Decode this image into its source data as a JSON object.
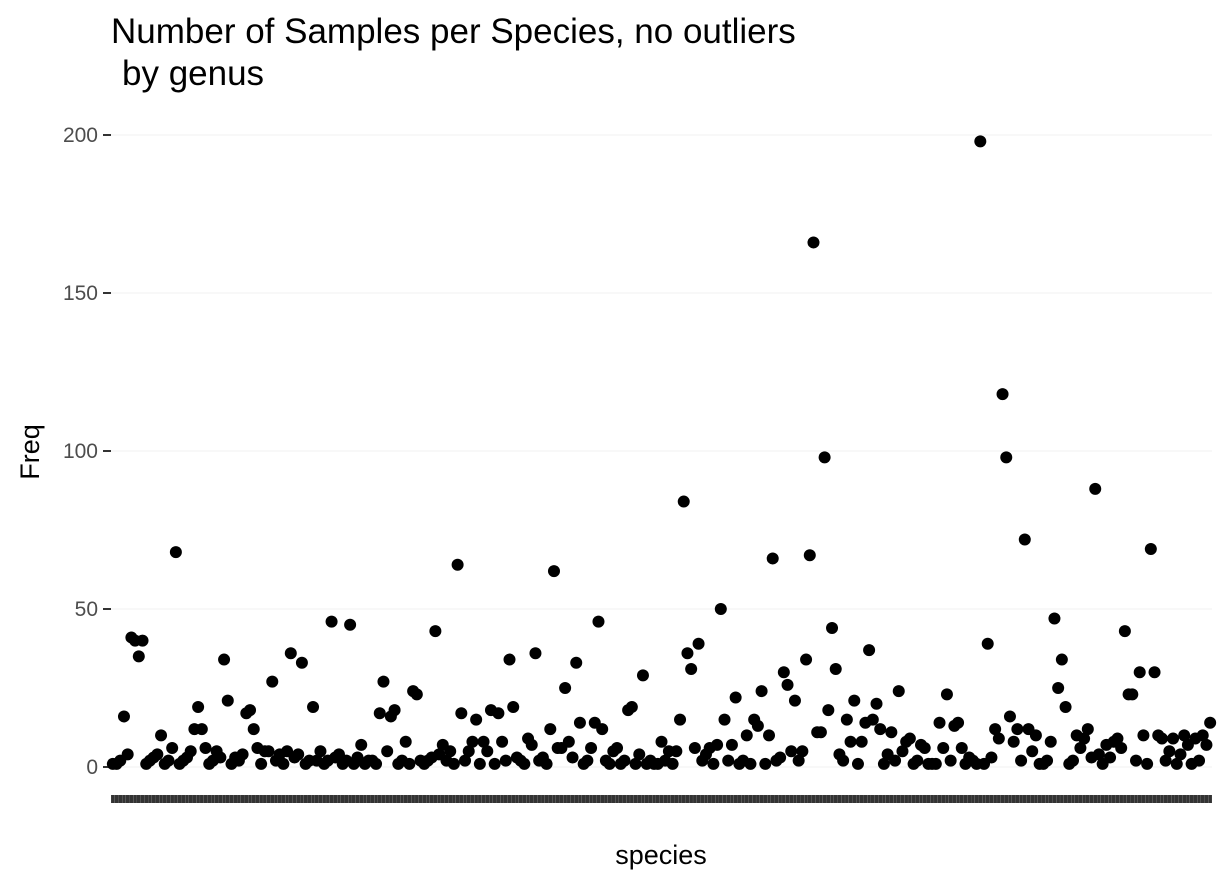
{
  "chart_data": {
    "type": "scatter",
    "title": "Number of Samples per Species, no outliers",
    "subtitle": "by genus",
    "xlabel": "species",
    "ylabel": "Freq",
    "ylim": [
      0,
      205
    ],
    "yticks": [
      0,
      50,
      100,
      150,
      200
    ],
    "grid": true,
    "legend": "none",
    "point_color": "#000000",
    "series": [
      {
        "values": [
          1,
          1,
          2,
          16,
          4,
          41,
          40,
          35,
          40,
          1,
          2,
          3,
          4,
          10,
          1,
          2,
          6,
          68,
          1,
          2,
          3,
          5,
          12,
          19,
          12,
          6,
          1,
          2,
          5,
          3,
          34,
          21,
          1,
          3,
          2,
          4,
          17,
          18,
          12,
          6,
          1,
          5,
          5,
          27,
          2,
          4,
          1,
          5,
          36,
          3,
          4,
          33,
          1,
          2,
          19,
          2,
          5,
          1,
          2,
          46,
          3,
          4,
          1,
          2,
          45,
          1,
          3,
          7,
          1,
          2,
          2,
          1,
          17,
          27,
          5,
          16,
          18,
          1,
          2,
          8,
          1,
          24,
          23,
          2,
          1,
          2,
          3,
          43,
          4,
          7,
          2,
          5,
          1,
          64,
          17,
          2,
          5,
          8,
          15,
          1,
          8,
          5,
          18,
          1,
          17,
          8,
          2,
          34,
          19,
          3,
          2,
          1,
          9,
          7,
          36,
          2,
          3,
          1,
          12,
          62,
          6,
          6,
          25,
          8,
          3,
          33,
          14,
          1,
          2,
          6,
          14,
          46,
          12,
          2,
          1,
          5,
          6,
          1,
          2,
          18,
          19,
          1,
          4,
          29,
          1,
          2,
          1,
          1,
          8,
          2,
          5,
          1,
          5,
          15,
          84,
          36,
          31,
          6,
          39,
          2,
          4,
          6,
          1,
          7,
          50,
          15,
          2,
          7,
          22,
          1,
          2,
          10,
          1,
          15,
          13,
          24,
          1,
          10,
          66,
          2,
          3,
          30,
          26,
          5,
          21,
          2,
          5,
          34,
          67,
          166,
          11,
          11,
          98,
          18,
          44,
          31,
          4,
          2,
          15,
          8,
          21,
          1,
          8,
          14,
          37,
          15,
          20,
          12,
          1,
          4,
          11,
          2,
          24,
          5,
          8,
          9,
          1,
          2,
          7,
          6,
          1,
          1,
          1,
          14,
          6,
          23,
          2,
          13,
          14,
          6,
          1,
          3,
          2,
          1,
          198,
          1,
          39,
          3,
          12,
          9,
          118,
          98,
          16,
          8,
          12,
          2,
          72,
          12,
          5,
          10,
          1,
          1,
          2,
          8,
          47,
          25,
          34,
          19,
          1,
          2,
          10,
          6,
          9,
          12,
          3,
          88,
          4,
          1,
          7,
          3,
          8,
          9,
          6,
          43,
          23,
          23,
          2,
          30,
          10,
          1,
          69,
          30,
          10,
          9,
          2,
          5,
          9,
          1,
          4,
          10,
          7,
          1,
          9,
          2,
          10,
          7,
          14
        ]
      }
    ],
    "x_tick_labels_note": ""
  }
}
